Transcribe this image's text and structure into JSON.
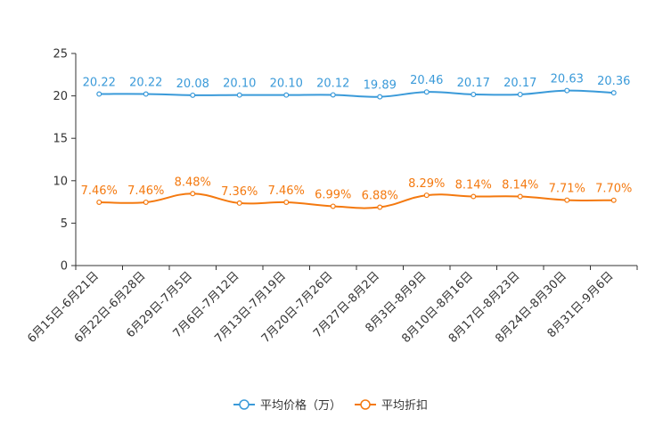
{
  "chart_data": {
    "type": "line",
    "title": "",
    "xlabel": "",
    "ylabel": "",
    "ylim": [
      0,
      25
    ],
    "yticks": [
      "0",
      "5",
      "10",
      "15",
      "20",
      "25"
    ],
    "categories": [
      "6月15日-6月21日",
      "6月22日-6月28日",
      "6月29日-7月5日",
      "7月6日-7月12日",
      "7月13日-7月19日",
      "7月20日-7月26日",
      "7月27日-8月2日",
      "8月3日-8月9日",
      "8月10日-8月16日",
      "8月17日-8月23日",
      "8月24日-8月30日",
      "8月31日-9月6日"
    ],
    "series": [
      {
        "name": "平均价格（万）",
        "color": "#3a9ad9",
        "values": [
          20.22,
          20.22,
          20.08,
          20.1,
          20.1,
          20.12,
          19.89,
          20.46,
          20.17,
          20.17,
          20.63,
          20.36
        ],
        "labels": [
          "20.22",
          "20.22",
          "20.08",
          "20.10",
          "20.10",
          "20.12",
          "19.89",
          "20.46",
          "20.17",
          "20.17",
          "20.63",
          "20.36"
        ]
      },
      {
        "name": "平均折扣",
        "color": "#f4790f",
        "values": [
          7.46,
          7.46,
          8.48,
          7.36,
          7.46,
          6.99,
          6.88,
          8.29,
          8.14,
          8.14,
          7.71,
          7.7
        ],
        "labels": [
          "7.46%",
          "7.46%",
          "8.48%",
          "7.36%",
          "7.46%",
          "6.99%",
          "6.88%",
          "8.29%",
          "8.14%",
          "8.14%",
          "7.71%",
          "7.70%"
        ]
      }
    ],
    "legend_position": "bottom-center"
  }
}
